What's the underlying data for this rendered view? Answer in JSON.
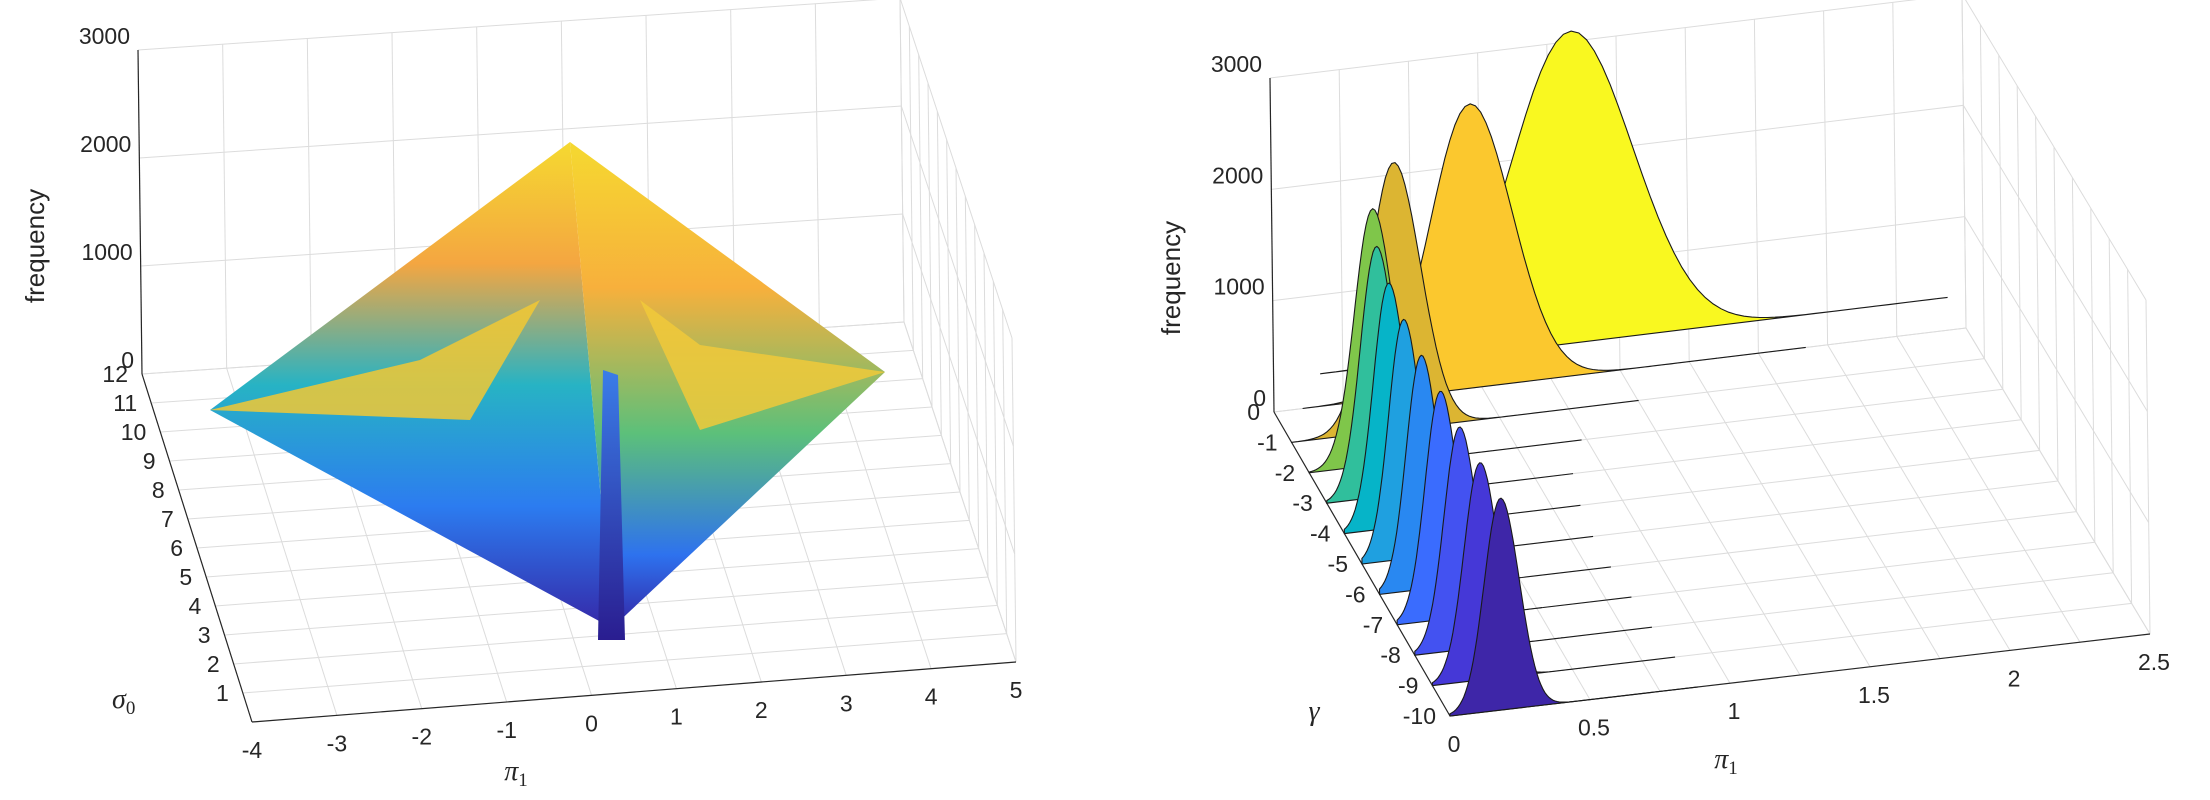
{
  "chart_data": [
    {
      "type": "surface",
      "zlabel": "frequency",
      "xlabel": "π₁",
      "ylabel": "σ₀",
      "xlabel_symbol": "π",
      "xlabel_sub": "1",
      "ylabel_symbol": "σ",
      "ylabel_sub": "0",
      "x_ticks": [
        -4,
        -3,
        -2,
        -1,
        0,
        1,
        2,
        3,
        4,
        5
      ],
      "y_ticks": [
        1,
        2,
        3,
        4,
        5,
        6,
        7,
        8,
        9,
        10,
        11,
        12
      ],
      "z_ticks": [
        0,
        1000,
        2000,
        3000
      ],
      "xlim": [
        -4,
        5
      ],
      "ylim": [
        0,
        12
      ],
      "zlim": [
        0,
        3000
      ],
      "peak": {
        "x": 0,
        "y": 12,
        "z": 2300
      },
      "grid": true,
      "colormap": "parula"
    },
    {
      "type": "waterfall-histogram",
      "zlabel": "frequency",
      "xlabel": "π₁",
      "ylabel": "γ",
      "xlabel_symbol": "π",
      "xlabel_sub": "1",
      "ylabel_symbol": "γ",
      "x_ticks": [
        0,
        0.5,
        1,
        1.5,
        2,
        2.5
      ],
      "y_ticks": [
        0,
        -1,
        -2,
        -3,
        -4,
        -5,
        -6,
        -7,
        -8,
        -9,
        -10
      ],
      "z_ticks": [
        0,
        1000,
        2000,
        3000
      ],
      "xlim": [
        0,
        2.5
      ],
      "ylim": [
        -10,
        0
      ],
      "zlim": [
        0,
        3000
      ],
      "grid": true,
      "series": [
        {
          "gamma": -10,
          "peak_x": 0.19,
          "peak_z": 1900,
          "color": "#3e26a8"
        },
        {
          "gamma": -9,
          "peak_x": 0.18,
          "peak_z": 1950,
          "color": "#4538d7"
        },
        {
          "gamma": -8,
          "peak_x": 0.17,
          "peak_z": 2000,
          "color": "#4352f1"
        },
        {
          "gamma": -7,
          "peak_x": 0.165,
          "peak_z": 2050,
          "color": "#3a6cfe"
        },
        {
          "gamma": -6,
          "peak_x": 0.16,
          "peak_z": 2100,
          "color": "#2988f1"
        },
        {
          "gamma": -5,
          "peak_x": 0.16,
          "peak_z": 2150,
          "color": "#1fa0e0"
        },
        {
          "gamma": -4,
          "peak_x": 0.17,
          "peak_z": 2200,
          "color": "#06b4c8"
        },
        {
          "gamma": -3,
          "peak_x": 0.19,
          "peak_z": 2250,
          "color": "#30bf9c"
        },
        {
          "gamma": -2,
          "peak_x": 0.24,
          "peak_z": 2300,
          "color": "#7fc64a"
        },
        {
          "gamma": -1,
          "peak_x": 0.38,
          "peak_z": 2400,
          "color": "#dcb532"
        },
        {
          "gamma": 0,
          "peak_x": 0.72,
          "peak_z": 2550,
          "color": "#fbc82e"
        },
        {
          "gamma": 1,
          "peak_x": 1.15,
          "peak_z": 2800,
          "color": "#f9f820"
        }
      ]
    }
  ]
}
